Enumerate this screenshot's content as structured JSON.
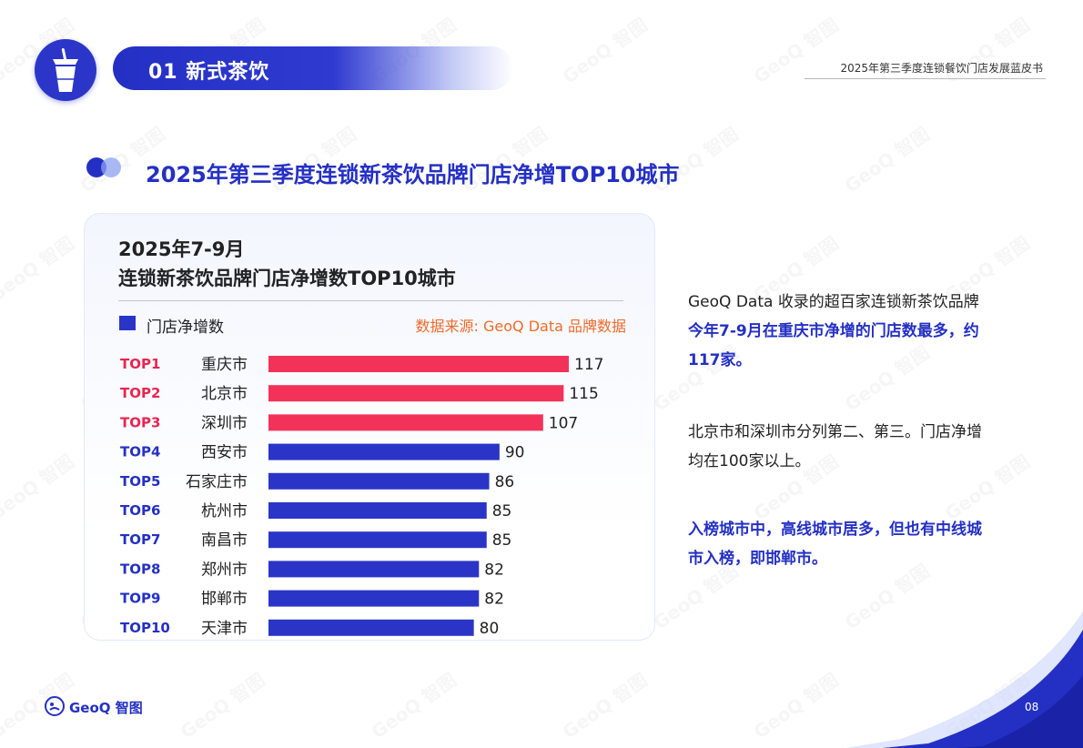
{
  "header": {
    "section_title": "01 新式茶饮",
    "report_title": "2025年第三季度连锁餐饮门店发展蓝皮书"
  },
  "main_title": "2025年第三季度连锁新茶饮品牌门店净增TOP10城市",
  "chart_data": {
    "type": "bar",
    "orientation": "horizontal",
    "title": "2025年7-9月",
    "subtitle": "连锁新茶饮品牌门店净增数TOP10城市",
    "legend": "门店净增数",
    "source": "数据来源: GeoQ Data 品牌数据",
    "ranks": [
      "TOP1",
      "TOP2",
      "TOP3",
      "TOP4",
      "TOP5",
      "TOP6",
      "TOP7",
      "TOP8",
      "TOP9",
      "TOP10"
    ],
    "categories": [
      "重庆市",
      "北京市",
      "深圳市",
      "西安市",
      "石家庄市",
      "杭州市",
      "南昌市",
      "郑州市",
      "邯郸市",
      "天津市"
    ],
    "values": [
      117,
      115,
      107,
      90,
      86,
      85,
      85,
      82,
      82,
      80
    ],
    "colors": {
      "top3": "#f3325a",
      "rest": "#2a35c8",
      "rank_top3": "#e82550",
      "rank_rest": "#2430c4"
    },
    "xlim": [
      0,
      150
    ]
  },
  "commentary": {
    "p1_plain": "GeoQ Data 收录的超百家连锁新茶饮品牌",
    "p1_highlight": "今年7-9月在重庆市净增的门店数最多，约117家。",
    "p2": "北京市和深圳市分列第二、第三。门店净增均在100家以上。",
    "p3": "入榜城市中，高线城市居多，但也有中线城市入榜，即邯郸市。"
  },
  "footer": {
    "brand": "GeoQ 智图",
    "page_number": "08"
  },
  "watermark": "GeoQ 智图",
  "colors": {
    "primary": "#2430c4",
    "accent_red": "#f3325a",
    "source_orange": "#f06a2a"
  }
}
